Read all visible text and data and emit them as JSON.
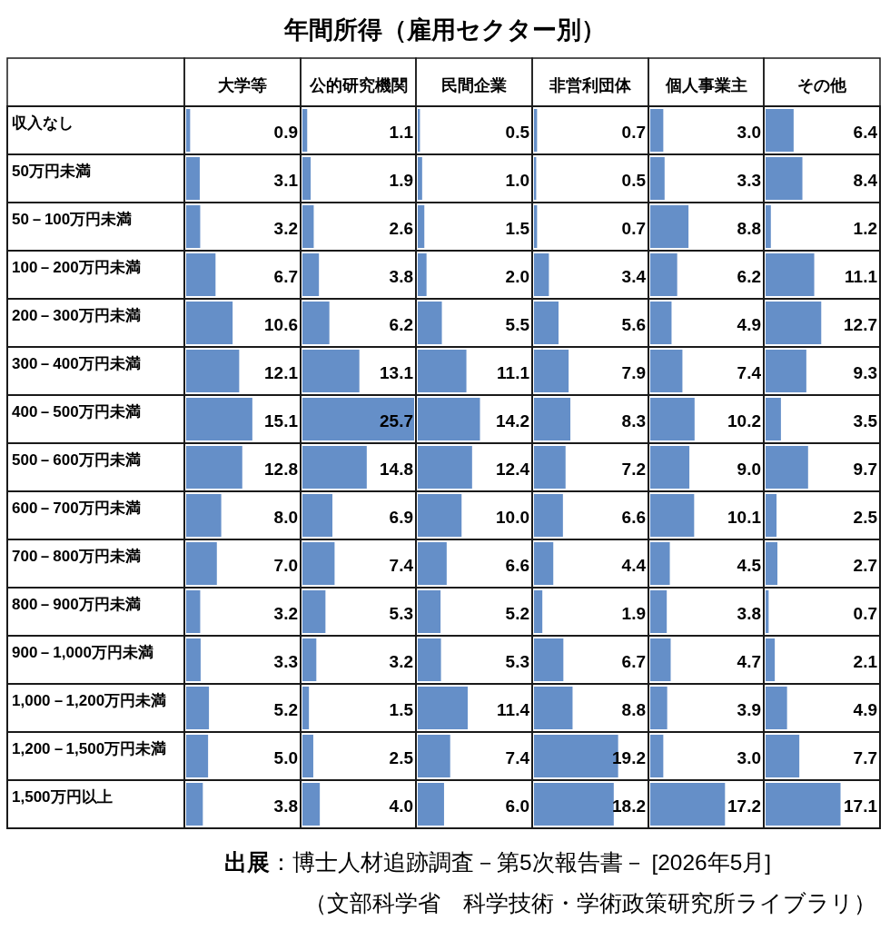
{
  "chart_data": [
    {
      "type": "other",
      "title": "年間所得（雇用セクター別）",
      "annotations": [
        "**出展**：博士人材追跡調査－第5次報告書－ [2026年5月]",
        "（文部科学省　科学技術・学術政策研究所ライブラリ）"
      ]
    },
    {
      "type": "bar",
      "orientation": "horizontal",
      "title": "大学等",
      "categories": [
        "収入なし",
        "50万円未満",
        "50－100万円未満",
        "100－200万円未満",
        "200－300万円未満",
        "300－400万円未満",
        "400－500万円未満",
        "500－600万円未満",
        "600－700万円未満",
        "700－800万円未満",
        "800－900万円未満",
        "900－1,000万円未満",
        "1,000－1,200万円未満",
        "1,200－1,500万円未満",
        "1,500万円以上"
      ],
      "values": [
        0.9,
        3.1,
        3.2,
        6.7,
        10.6,
        12.1,
        15.1,
        12.8,
        8.0,
        7.0,
        3.2,
        3.3,
        5.2,
        5.0,
        3.8
      ],
      "value_labels": [
        "0.9",
        "3.1",
        "3.2",
        "6.7",
        "10.6",
        "12.1",
        "15.1",
        "12.8",
        "8.0",
        "7.0",
        "3.2",
        "3.3",
        "5.2",
        "5.0",
        "3.8"
      ],
      "color": "#658fc8",
      "tick_labels": "y"
    },
    {
      "type": "bar",
      "orientation": "horizontal",
      "title": "公的研究機関",
      "categories": [
        null,
        null,
        null,
        null,
        null,
        null,
        null,
        null,
        null,
        null,
        null,
        null,
        null,
        null,
        null
      ],
      "values": [
        1.1,
        1.9,
        2.6,
        3.8,
        6.2,
        13.1,
        25.7,
        14.8,
        6.9,
        7.4,
        5.3,
        3.2,
        1.5,
        2.5,
        4.0
      ],
      "value_labels": [
        "1.1",
        "1.9",
        "2.6",
        "3.8",
        "6.2",
        "13.1",
        "25.7",
        "14.8",
        "6.9",
        "7.4",
        "5.3",
        "3.2",
        "1.5",
        "2.5",
        "4.0"
      ],
      "color": "#658fc8"
    },
    {
      "type": "bar",
      "orientation": "horizontal",
      "title": "民間企業",
      "categories": [
        null,
        null,
        null,
        null,
        null,
        null,
        null,
        null,
        null,
        null,
        null,
        null,
        null,
        null,
        null
      ],
      "values": [
        0.5,
        1.0,
        1.5,
        2.0,
        5.5,
        11.1,
        14.2,
        12.4,
        10.0,
        6.6,
        5.2,
        5.3,
        11.4,
        7.4,
        6.0
      ],
      "value_labels": [
        "0.5",
        "1.0",
        "1.5",
        "2.0",
        "5.5",
        "11.1",
        "14.2",
        "12.4",
        "10.0",
        "6.6",
        "5.2",
        "5.3",
        "11.4",
        "7.4",
        "6.0"
      ],
      "color": "#658fc8"
    },
    {
      "type": "bar",
      "orientation": "horizontal",
      "title": "非営利団体",
      "categories": [
        null,
        null,
        null,
        null,
        null,
        null,
        null,
        null,
        null,
        null,
        null,
        null,
        null,
        null,
        null
      ],
      "values": [
        0.7,
        0.5,
        0.7,
        3.4,
        5.6,
        7.9,
        8.3,
        7.2,
        6.6,
        4.4,
        1.9,
        6.7,
        8.8,
        19.2,
        18.2
      ],
      "value_labels": [
        "0.7",
        "0.5",
        "0.7",
        "3.4",
        "5.6",
        "7.9",
        "8.3",
        "7.2",
        "6.6",
        "4.4",
        "1.9",
        "6.7",
        "8.8",
        "19.2",
        "18.2"
      ],
      "color": "#658fc8"
    },
    {
      "type": "bar",
      "orientation": "horizontal",
      "title": "個人事業主",
      "categories": [
        null,
        null,
        null,
        null,
        null,
        null,
        null,
        null,
        null,
        null,
        null,
        null,
        null,
        null,
        null
      ],
      "values": [
        3.0,
        3.3,
        8.8,
        6.2,
        4.9,
        7.4,
        10.2,
        9.0,
        10.1,
        4.5,
        3.8,
        4.7,
        3.9,
        3.0,
        17.2
      ],
      "value_labels": [
        "3.0",
        "3.3",
        "8.8",
        "6.2",
        "4.9",
        "7.4",
        "10.2",
        "9.0",
        "10.1",
        "4.5",
        "3.8",
        "4.7",
        "3.9",
        "3.0",
        "17.2"
      ],
      "color": "#658fc8"
    },
    {
      "type": "bar",
      "orientation": "horizontal",
      "title": "その他",
      "categories": [
        null,
        null,
        null,
        null,
        null,
        null,
        null,
        null,
        null,
        null,
        null,
        null,
        null,
        null,
        null
      ],
      "values": [
        6.4,
        8.4,
        1.2,
        11.1,
        12.7,
        9.3,
        3.5,
        9.7,
        2.5,
        2.7,
        0.7,
        2.1,
        4.9,
        7.7,
        17.1
      ],
      "value_labels": [
        "6.4",
        "8.4",
        "1.2",
        "11.1",
        "12.7",
        "9.3",
        "3.5",
        "9.7",
        "2.5",
        "2.7",
        "0.7",
        "2.1",
        "4.9",
        "7.7",
        "17.1"
      ],
      "color": "#658fc8"
    }
  ]
}
